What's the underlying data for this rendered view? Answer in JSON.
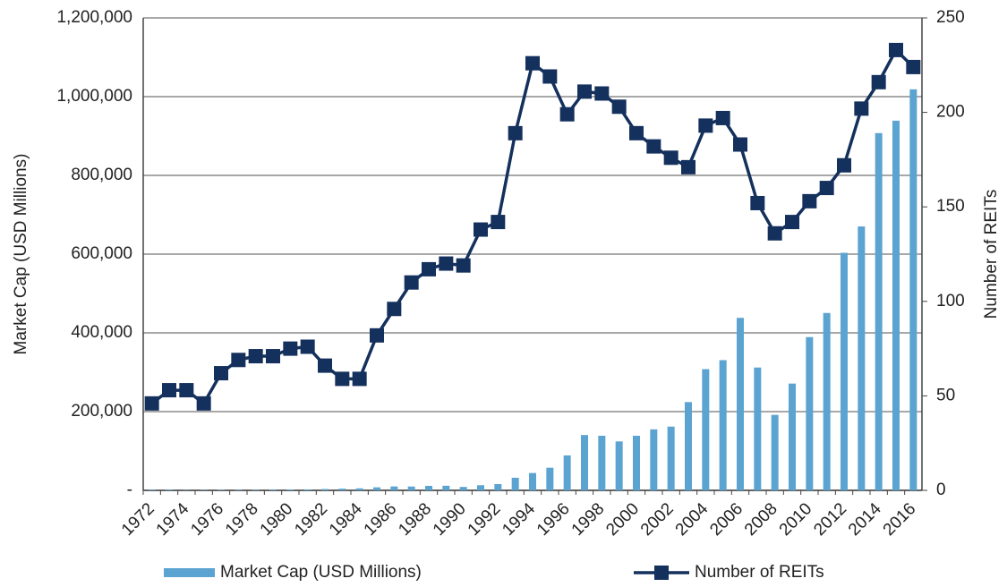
{
  "chart_data": {
    "type": "bar",
    "ylabel": "Market Cap (USD Millions)",
    "y2label": "Number of REITs",
    "categories": [
      "1972",
      null,
      "1974",
      null,
      "1976",
      null,
      "1978",
      null,
      "1980",
      null,
      "1982",
      null,
      "1984",
      null,
      "1986",
      null,
      "1988",
      null,
      "1990",
      null,
      "1992",
      null,
      "1994",
      null,
      "1996",
      null,
      "1998",
      null,
      "2000",
      null,
      "2002",
      null,
      "2004",
      null,
      "2006",
      null,
      "2008",
      null,
      "2010",
      null,
      "2012",
      null,
      "2014",
      null,
      "2016"
    ],
    "series": [
      {
        "name": "Market Cap (USD Millions)",
        "type": "bar",
        "color": "#5ba3d0",
        "values": [
          1500,
          1900,
          700,
          900,
          1300,
          1500,
          1400,
          1800,
          2300,
          2400,
          3300,
          4300,
          5100,
          7700,
          9900,
          9700,
          11400,
          11700,
          8700,
          13000,
          15900,
          32000,
          44000,
          57500,
          88800,
          140500,
          138700,
          124300,
          138700,
          154900,
          161900,
          224200,
          307900,
          330700,
          438100,
          312000,
          191700,
          271200,
          389300,
          450500,
          603300,
          670300,
          907400,
          938900,
          1018600
        ]
      },
      {
        "name": "Number of REITs",
        "type": "line",
        "axis": "y2",
        "color": "#14305c",
        "values": [
          46,
          53,
          53,
          46,
          62,
          69,
          71,
          71,
          75,
          76,
          66,
          59,
          59,
          82,
          96,
          110,
          117,
          120,
          119,
          138,
          142,
          189,
          226,
          219,
          199,
          211,
          210,
          203,
          189,
          182,
          176,
          171,
          193,
          197,
          183,
          152,
          136,
          142,
          153,
          160,
          172,
          202,
          216,
          233,
          224
        ]
      }
    ],
    "ylim": [
      0,
      1200000
    ],
    "yticks": [
      {
        "value": 0,
        "label": "-"
      },
      {
        "value": 200000,
        "label": "200,000"
      },
      {
        "value": 400000,
        "label": "400,000"
      },
      {
        "value": 600000,
        "label": "600,000"
      },
      {
        "value": 800000,
        "label": "800,000"
      },
      {
        "value": 1000000,
        "label": "1,000,000"
      },
      {
        "value": 1200000,
        "label": "1,200,000"
      }
    ],
    "y2lim": [
      0,
      250
    ],
    "y2ticks": [
      0,
      50,
      100,
      150,
      200,
      250
    ],
    "grid": true
  }
}
